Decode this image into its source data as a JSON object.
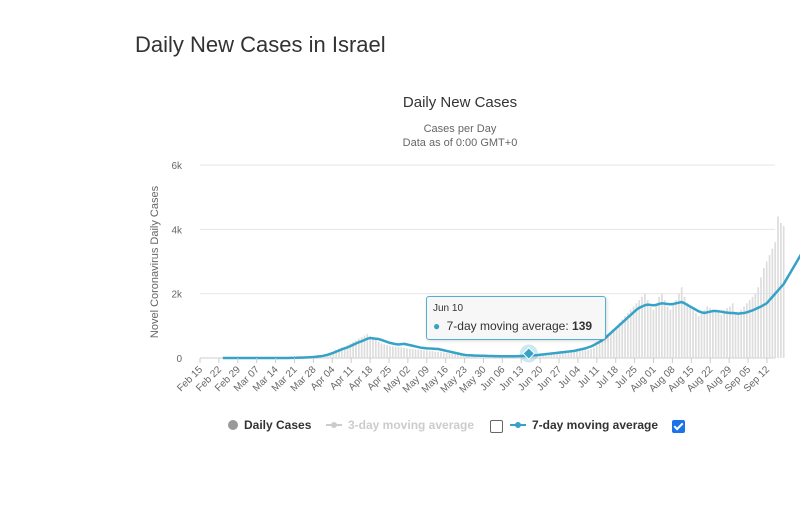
{
  "page": {
    "heading": "Daily New Cases in Israel"
  },
  "chart_data": {
    "type": "bar",
    "title": "Daily New Cases",
    "subtitle_lines": [
      "Cases per Day",
      "Data as of 0:00 GMT+0"
    ],
    "ylabel": "Novel Coronavirus Daily Cases",
    "xlabel": "",
    "ylim": [
      0,
      6000
    ],
    "yticks": [
      0,
      2000,
      4000,
      6000
    ],
    "ytick_labels": [
      "0",
      "2k",
      "4k",
      "6k"
    ],
    "x_start": "2020-02-15",
    "x_end": "2020-09-15",
    "xtick_labels": [
      "Feb 15",
      "Feb 22",
      "Feb 29",
      "Mar 07",
      "Mar 14",
      "Mar 21",
      "Mar 28",
      "Apr 04",
      "Apr 11",
      "Apr 18",
      "Apr 25",
      "May 02",
      "May 09",
      "May 16",
      "May 23",
      "May 30",
      "Jun 06",
      "Jun 13",
      "Jun 20",
      "Jun 27",
      "Jul 04",
      "Jul 11",
      "Jul 18",
      "Jul 25",
      "Aug 01",
      "Aug 08",
      "Aug 15",
      "Aug 22",
      "Aug 29",
      "Sep 05",
      "Sep 12"
    ],
    "grid": true,
    "legend_placement": "bottom",
    "series": [
      {
        "name": "Daily Cases",
        "kind": "bar",
        "color": "#dddddd",
        "values": [
          0,
          0,
          0,
          0,
          0,
          0,
          0,
          0,
          0,
          0,
          0,
          0,
          0,
          0,
          0,
          0,
          0,
          0,
          0,
          0,
          0,
          0,
          0,
          2,
          2,
          5,
          5,
          10,
          10,
          15,
          20,
          30,
          40,
          55,
          70,
          80,
          100,
          130,
          160,
          200,
          250,
          300,
          330,
          350,
          400,
          450,
          500,
          550,
          600,
          650,
          700,
          750,
          680,
          620,
          560,
          500,
          450,
          420,
          400,
          380,
          360,
          350,
          340,
          330,
          320,
          300,
          290,
          280,
          270,
          260,
          250,
          240,
          230,
          220,
          210,
          200,
          190,
          180,
          170,
          160,
          150,
          140,
          130,
          120,
          110,
          100,
          90,
          85,
          80,
          75,
          70,
          65,
          60,
          58,
          56,
          54,
          52,
          50,
          48,
          46,
          44,
          42,
          40,
          38,
          36,
          38,
          40,
          42,
          45,
          50,
          60,
          70,
          80,
          90,
          100,
          110,
          120,
          130,
          140,
          150,
          160,
          170,
          180,
          190,
          200,
          210,
          220,
          230,
          240,
          250,
          280,
          320,
          380,
          450,
          520,
          600,
          700,
          800,
          900,
          1000,
          1100,
          1200,
          1300,
          1400,
          1500,
          1600,
          1700,
          1800,
          1900,
          2000,
          1800,
          1600,
          1500,
          1700,
          1900,
          2000,
          1800,
          1600,
          1500,
          1700,
          1800,
          2000,
          2200,
          1900,
          1700,
          1600,
          1500,
          1400,
          1300,
          1450,
          1500,
          1600,
          1550,
          1500,
          1450,
          1400,
          1350,
          1500,
          1550,
          1600,
          1700,
          1400,
          1350,
          1500,
          1600,
          1700,
          1800,
          1900,
          2000,
          2200,
          2500,
          2800,
          3000,
          3200,
          3400,
          3600,
          4400,
          4200,
          4100
        ],
        "visible": true
      },
      {
        "name": "3-day moving average",
        "kind": "line",
        "color": "#cccccc",
        "visible": false
      },
      {
        "name": "7-day moving average",
        "kind": "line",
        "color": "#35a2c8",
        "values": [
          0,
          0,
          0,
          0,
          0,
          0,
          0,
          0,
          0,
          0,
          0,
          0,
          0,
          0,
          0,
          0,
          0,
          0,
          0,
          0,
          0,
          0,
          0,
          2,
          3,
          5,
          7,
          10,
          12,
          16,
          20,
          25,
          30,
          40,
          50,
          60,
          80,
          100,
          130,
          160,
          200,
          230,
          270,
          300,
          330,
          370,
          410,
          450,
          490,
          520,
          560,
          600,
          620,
          610,
          600,
          590,
          560,
          530,
          500,
          470,
          450,
          430,
          420,
          430,
          440,
          420,
          400,
          380,
          360,
          340,
          320,
          310,
          300,
          295,
          290,
          285,
          280,
          260,
          240,
          220,
          200,
          180,
          160,
          140,
          120,
          100,
          90,
          85,
          80,
          75,
          72,
          70,
          68,
          66,
          64,
          62,
          60,
          58,
          56,
          55,
          54,
          54,
          55,
          56,
          58,
          60,
          65,
          70,
          75,
          80,
          85,
          90,
          100,
          110,
          120,
          130,
          139,
          150,
          160,
          170,
          180,
          190,
          200,
          210,
          220,
          240,
          260,
          280,
          300,
          330,
          360,
          400,
          450,
          500,
          560,
          620,
          700,
          780,
          860,
          940,
          1020,
          1100,
          1180,
          1260,
          1340,
          1420,
          1500,
          1560,
          1600,
          1640,
          1660,
          1650,
          1640,
          1650,
          1680,
          1700,
          1690,
          1680,
          1670,
          1680,
          1700,
          1720,
          1740,
          1700,
          1650,
          1600,
          1550,
          1500,
          1450,
          1420,
          1400,
          1420,
          1440,
          1460,
          1460,
          1450,
          1440,
          1420,
          1410,
          1400,
          1400,
          1390,
          1380,
          1390,
          1400,
          1420,
          1450,
          1480,
          1520,
          1560,
          1600,
          1650,
          1700,
          1800,
          1900,
          2000,
          2100,
          2200,
          2300,
          2450,
          2600,
          2750,
          2900,
          3050,
          3200,
          3350,
          3450
        ],
        "visible": true
      }
    ],
    "legend": [
      {
        "label": "Daily Cases",
        "visible": true,
        "checkbox": null
      },
      {
        "label": "3-day moving average",
        "visible": false,
        "checkbox": "unchecked"
      },
      {
        "label": "7-day moving average",
        "visible": true,
        "checkbox": "checked"
      }
    ],
    "tooltip": {
      "date_label": "Jun 10",
      "series_label": "7-day moving average:",
      "value": "139",
      "x": "2020-06-10",
      "y": 139
    }
  },
  "colors": {
    "accent": "#35a2c8",
    "bars": "#dddddd",
    "grid": "#e6e6e6",
    "checkbox": "#1a73e8"
  }
}
